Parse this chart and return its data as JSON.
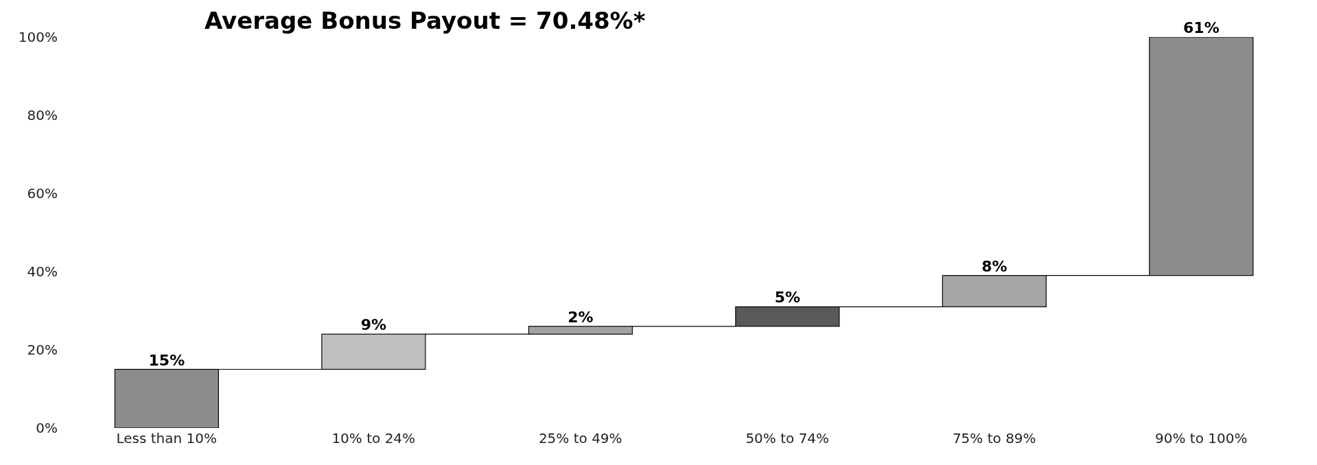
{
  "chart_data": {
    "type": "bar",
    "title": "Average Bonus Payout = 70.48%*",
    "categories": [
      "Less than 10%",
      "10% to 24%",
      "25% to 49%",
      "50% to 74%",
      "75% to 89%",
      "90% to 100%"
    ],
    "values": [
      15,
      9,
      2,
      5,
      8,
      61
    ],
    "base": [
      0,
      15,
      24,
      26,
      31,
      39
    ],
    "colors": [
      "#8c8c8c",
      "#bfbfbf",
      "#a3a3a3",
      "#595959",
      "#a6a6a6",
      "#8c8c8c"
    ],
    "value_labels": [
      "15%",
      "9%",
      "2%",
      "5%",
      "8%",
      "61%"
    ],
    "ylim": [
      0,
      100
    ],
    "yticks": [
      {
        "value": 0,
        "label": "0%"
      },
      {
        "value": 20,
        "label": "20%"
      },
      {
        "value": 40,
        "label": "40%"
      },
      {
        "value": 60,
        "label": "60%"
      },
      {
        "value": 80,
        "label": "80%"
      },
      {
        "value": 100,
        "label": "100%"
      }
    ]
  }
}
